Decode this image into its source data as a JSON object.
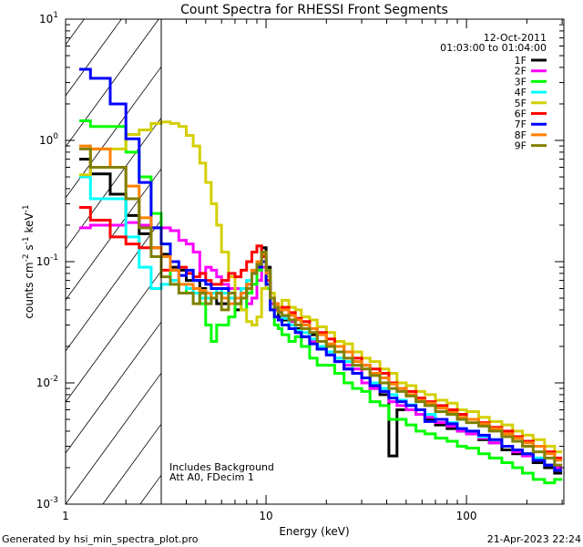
{
  "chart_data": {
    "type": "line",
    "title": "Count Spectra for RHESSI Front Segments",
    "xlabel": "Energy (keV)",
    "ylabel": "counts cm^-2 s^-1 keV^-1",
    "ylabel_parts": {
      "base": "counts cm",
      "e1": "-2",
      "mid": " s",
      "e2": "-1",
      "mid2": " keV",
      "e3": "-1"
    },
    "xscale": "log",
    "yscale": "log",
    "xlim": [
      1,
      306
    ],
    "ylim": [
      0.001,
      10
    ],
    "x_ticks": [
      {
        "v": 1,
        "label": "1"
      },
      {
        "v": 10,
        "label": "10"
      },
      {
        "v": 100,
        "label": "100"
      }
    ],
    "y_ticks": [
      {
        "v": 10,
        "label": "10",
        "exp": "1"
      },
      {
        "v": 1,
        "label": "10",
        "exp": "0"
      },
      {
        "v": 0.1,
        "label": "10",
        "exp": "-1"
      },
      {
        "v": 0.01,
        "label": "10",
        "exp": "-2"
      },
      {
        "v": 0.001,
        "label": "10",
        "exp": "-3"
      }
    ],
    "hatched_region_max_energy": 3,
    "legend_placement": "top-right",
    "legend_header": [
      "12-Oct-2011",
      "01:03:00 to 01:04:00"
    ],
    "annotations": [
      "Includes Background",
      "Att A0, FDecim 1"
    ],
    "energy_edges": [
      1.17,
      1.33,
      1.67,
      2,
      2.33,
      2.67,
      3,
      3.33,
      3.67,
      4,
      4.33,
      4.67,
      5,
      5.33,
      5.67,
      6,
      6.5,
      7,
      7.5,
      8,
      8.5,
      9,
      9.5,
      10,
      10.5,
      11,
      11.5,
      12,
      13,
      14,
      15,
      16.5,
      18,
      20,
      22,
      24.5,
      27,
      30,
      33,
      37,
      41,
      45,
      50,
      56,
      62,
      70,
      80,
      90,
      100,
      115,
      130,
      150,
      170,
      190,
      215,
      245,
      275,
      300
    ],
    "series": [
      {
        "name": "1F",
        "color": "#000000",
        "values": [
          0.7,
          0.53,
          0.36,
          0.24,
          0.17,
          0.13,
          0.115,
          0.09,
          0.085,
          0.07,
          0.07,
          0.06,
          0.055,
          0.05,
          0.045,
          0.045,
          0.05,
          0.04,
          0.05,
          0.06,
          0.08,
          0.1,
          0.13,
          0.09,
          0.05,
          0.04,
          0.035,
          0.033,
          0.03,
          0.028,
          0.024,
          0.025,
          0.019,
          0.018,
          0.016,
          0.013,
          0.012,
          0.011,
          0.009,
          0.008,
          0.0025,
          0.006,
          0.006,
          0.0055,
          0.005,
          0.0045,
          0.0042,
          0.004,
          0.0038,
          0.0034,
          0.0032,
          0.0028,
          0.0026,
          0.0026,
          0.0022,
          0.002,
          0.0018
        ]
      },
      {
        "name": "2F",
        "color": "#ff00ff",
        "values": [
          0.19,
          0.2,
          0.2,
          0.21,
          0.2,
          0.19,
          0.19,
          0.18,
          0.15,
          0.14,
          0.12,
          0.08,
          0.09,
          0.085,
          0.075,
          0.065,
          0.06,
          0.06,
          0.05,
          0.045,
          0.05,
          0.07,
          0.09,
          0.06,
          0.045,
          0.04,
          0.04,
          0.035,
          0.032,
          0.026,
          0.028,
          0.022,
          0.02,
          0.017,
          0.015,
          0.014,
          0.013,
          0.01,
          0.009,
          0.0085,
          0.007,
          0.0065,
          0.006,
          0.0055,
          0.0052,
          0.0047,
          0.0044,
          0.004,
          0.0038,
          0.0035,
          0.0032,
          0.003,
          0.0027,
          0.0025,
          0.0023,
          0.0021,
          0.002
        ]
      },
      {
        "name": "3F",
        "color": "#00ff00",
        "values": [
          1.45,
          1.3,
          1.3,
          0.8,
          0.5,
          0.25,
          0.14,
          0.07,
          0.065,
          0.055,
          0.06,
          0.045,
          0.03,
          0.022,
          0.03,
          0.03,
          0.035,
          0.045,
          0.04,
          0.055,
          0.065,
          0.085,
          0.1,
          0.06,
          0.04,
          0.03,
          0.028,
          0.025,
          0.022,
          0.024,
          0.02,
          0.016,
          0.014,
          0.014,
          0.012,
          0.01,
          0.009,
          0.0085,
          0.007,
          0.0065,
          0.005,
          0.005,
          0.0045,
          0.004,
          0.0038,
          0.0035,
          0.0033,
          0.003,
          0.0029,
          0.0026,
          0.0024,
          0.0022,
          0.002,
          0.0018,
          0.0016,
          0.0015,
          0.0016
        ]
      },
      {
        "name": "4F",
        "color": "#00ffff",
        "values": [
          0.5,
          0.33,
          0.33,
          0.16,
          0.09,
          0.06,
          0.065,
          0.07,
          0.065,
          0.06,
          0.055,
          0.05,
          0.05,
          0.055,
          0.06,
          0.055,
          0.05,
          0.05,
          0.06,
          0.07,
          0.085,
          0.1,
          0.12,
          0.08,
          0.05,
          0.042,
          0.038,
          0.034,
          0.03,
          0.027,
          0.026,
          0.023,
          0.02,
          0.018,
          0.016,
          0.015,
          0.012,
          0.011,
          0.01,
          0.009,
          0.008,
          0.0072,
          0.0066,
          0.006,
          0.0055,
          0.005,
          0.0047,
          0.0042,
          0.004,
          0.0036,
          0.0034,
          0.003,
          0.0028,
          0.0026,
          0.0024,
          0.0021,
          0.0019
        ]
      },
      {
        "name": "5F",
        "color": "#d4cf00",
        "values": [
          0.52,
          0.85,
          0.85,
          1.12,
          1.22,
          1.38,
          1.42,
          1.38,
          1.3,
          1.1,
          0.9,
          0.65,
          0.45,
          0.3,
          0.2,
          0.12,
          0.075,
          0.05,
          0.04,
          0.032,
          0.03,
          0.035,
          0.06,
          0.075,
          0.055,
          0.045,
          0.042,
          0.048,
          0.042,
          0.04,
          0.035,
          0.033,
          0.029,
          0.026,
          0.022,
          0.021,
          0.018,
          0.016,
          0.015,
          0.013,
          0.012,
          0.01,
          0.0095,
          0.0085,
          0.008,
          0.0072,
          0.0068,
          0.006,
          0.0058,
          0.0052,
          0.0048,
          0.0045,
          0.004,
          0.0037,
          0.0034,
          0.003,
          0.0027
        ]
      },
      {
        "name": "6F",
        "color": "#ff0000",
        "values": [
          0.28,
          0.22,
          0.16,
          0.14,
          0.13,
          0.13,
          0.085,
          0.085,
          0.09,
          0.08,
          0.075,
          0.08,
          0.07,
          0.065,
          0.065,
          0.07,
          0.08,
          0.075,
          0.085,
          0.1,
          0.12,
          0.135,
          0.11,
          0.07,
          0.05,
          0.045,
          0.04,
          0.042,
          0.038,
          0.034,
          0.032,
          0.028,
          0.026,
          0.023,
          0.02,
          0.018,
          0.016,
          0.014,
          0.013,
          0.012,
          0.01,
          0.009,
          0.0085,
          0.0075,
          0.007,
          0.0065,
          0.006,
          0.0055,
          0.005,
          0.0047,
          0.0043,
          0.004,
          0.0036,
          0.0033,
          0.003,
          0.0027,
          0.0024
        ]
      },
      {
        "name": "7F",
        "color": "#0000ff",
        "values": [
          3.86,
          3.25,
          2.0,
          1.03,
          0.45,
          0.19,
          0.14,
          0.1,
          0.077,
          0.085,
          0.07,
          0.07,
          0.065,
          0.06,
          0.06,
          0.06,
          0.055,
          0.05,
          0.055,
          0.065,
          0.08,
          0.09,
          0.1,
          0.065,
          0.04,
          0.035,
          0.033,
          0.03,
          0.028,
          0.026,
          0.024,
          0.021,
          0.019,
          0.017,
          0.015,
          0.013,
          0.012,
          0.011,
          0.0095,
          0.0085,
          0.0075,
          0.007,
          0.0065,
          0.006,
          0.0048,
          0.005,
          0.0046,
          0.0042,
          0.004,
          0.0037,
          0.0034,
          0.003,
          0.0028,
          0.0026,
          0.0023,
          0.0021,
          0.0019
        ]
      },
      {
        "name": "8F",
        "color": "#ff8000",
        "values": [
          0.9,
          0.85,
          0.6,
          0.42,
          0.23,
          0.13,
          0.11,
          0.085,
          0.065,
          0.065,
          0.06,
          0.058,
          0.055,
          0.05,
          0.055,
          0.05,
          0.045,
          0.05,
          0.055,
          0.065,
          0.085,
          0.1,
          0.115,
          0.08,
          0.05,
          0.045,
          0.04,
          0.04,
          0.036,
          0.033,
          0.03,
          0.028,
          0.025,
          0.021,
          0.02,
          0.018,
          0.015,
          0.014,
          0.012,
          0.011,
          0.0098,
          0.009,
          0.008,
          0.0072,
          0.0068,
          0.0062,
          0.0057,
          0.0052,
          0.005,
          0.0046,
          0.0042,
          0.0038,
          0.0035,
          0.0032,
          0.003,
          0.0026,
          0.0023
        ]
      },
      {
        "name": "9F",
        "color": "#808000",
        "values": [
          0.85,
          0.6,
          0.6,
          0.33,
          0.19,
          0.11,
          0.075,
          0.065,
          0.055,
          0.055,
          0.045,
          0.055,
          0.045,
          0.05,
          0.055,
          0.04,
          0.055,
          0.045,
          0.05,
          0.06,
          0.08,
          0.095,
          0.12,
          0.085,
          0.05,
          0.042,
          0.038,
          0.036,
          0.033,
          0.03,
          0.028,
          0.026,
          0.022,
          0.02,
          0.018,
          0.016,
          0.014,
          0.013,
          0.0115,
          0.01,
          0.009,
          0.0085,
          0.0078,
          0.007,
          0.0065,
          0.0058,
          0.0055,
          0.005,
          0.0047,
          0.0044,
          0.004,
          0.0036,
          0.0033,
          0.003,
          0.0027,
          0.0024,
          0.0021
        ]
      }
    ]
  },
  "footer": {
    "generated_by": "Generated by hsi_min_spectra_plot.pro",
    "timestamp": "21-Apr-2023 22:24"
  }
}
